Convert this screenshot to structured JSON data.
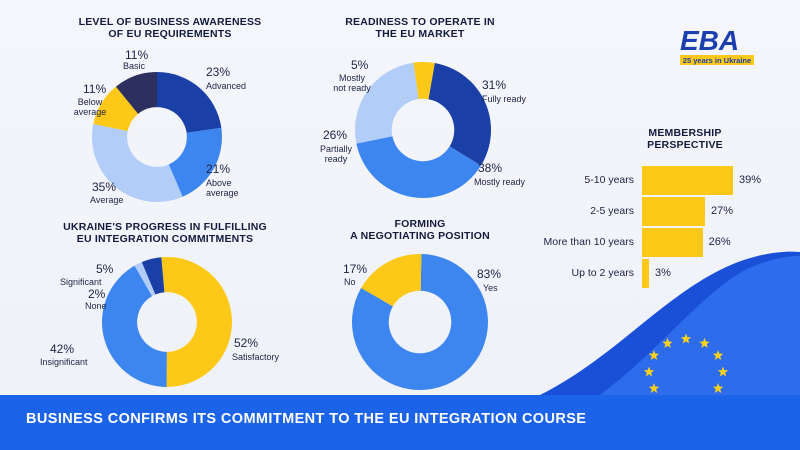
{
  "footer": {
    "text": "BUSINESS CONFIRMS ITS COMMITMENT TO THE EU INTEGRATION COURSE"
  },
  "logo": {
    "text": "EBA",
    "tagline": "25 years in Ukraine"
  },
  "colors": {
    "dark_navy": "#2d2f5e",
    "navy": "#1a3fa6",
    "blue": "#3d86ef",
    "light_blue": "#b2cdf7",
    "yellow": "#fdc817",
    "footer": "#1b63e8"
  },
  "chart_data": [
    {
      "type": "pie",
      "title": "LEVEL OF BUSINESS AWARENESS\nOF EU REQUIREMENTS",
      "slices": [
        {
          "label": "Advanced",
          "value": 23,
          "display": "23%",
          "color": "#1a3fa6"
        },
        {
          "label": "Above\naverage",
          "value": 21,
          "display": "21%",
          "color": "#3d86ef"
        },
        {
          "label": "Average",
          "value": 35,
          "display": "35%",
          "color": "#b2cdf7"
        },
        {
          "label": "Below\naverage",
          "value": 11,
          "display": "11%",
          "color": "#fdc817"
        },
        {
          "label": "Basic",
          "value": 11,
          "display": "11%",
          "color": "#2d2f5e"
        }
      ]
    },
    {
      "type": "pie",
      "title": "READINESS TO OPERATE IN\nTHE EU MARKET",
      "slices": [
        {
          "label": "Fully ready",
          "value": 31,
          "display": "31%",
          "color": "#1a3fa6"
        },
        {
          "label": "Mostly ready",
          "value": 38,
          "display": "38%",
          "color": "#3d86ef"
        },
        {
          "label": "Partially\nready",
          "value": 26,
          "display": "26%",
          "color": "#b2cdf7"
        },
        {
          "label": "Mostly\nnot ready",
          "value": 5,
          "display": "5%",
          "color": "#fdc817"
        }
      ]
    },
    {
      "type": "pie",
      "title": "UKRAINE'S PROGRESS IN FULFILLING\nEU INTEGRATION COMMITMENTS",
      "slices": [
        {
          "label": "Satisfactory",
          "value": 52,
          "display": "52%",
          "color": "#fdc817"
        },
        {
          "label": "Insignificant",
          "value": 42,
          "display": "42%",
          "color": "#3d86ef"
        },
        {
          "label": "None",
          "value": 2,
          "display": "2%",
          "color": "#b2cdf7"
        },
        {
          "label": "Significant",
          "value": 5,
          "display": "5%",
          "color": "#1a3fa6"
        }
      ]
    },
    {
      "type": "pie",
      "title": "FORMING\nA NEGOTIATING POSITION",
      "slices": [
        {
          "label": "Yes",
          "value": 83,
          "display": "83%",
          "color": "#3d86ef"
        },
        {
          "label": "No",
          "value": 17,
          "display": "17%",
          "color": "#fdc817"
        }
      ]
    },
    {
      "type": "bar",
      "orientation": "horizontal",
      "title": "MEMBERSHIP\nPERSPECTIVE",
      "categories": [
        "5-10 years",
        "2-5 years",
        "More than 10 years",
        "Up to 2 years"
      ],
      "values": [
        39,
        27,
        26,
        3
      ],
      "labels": [
        "39%",
        "27%",
        "26%",
        "3%"
      ],
      "color": "#fdc817"
    }
  ]
}
